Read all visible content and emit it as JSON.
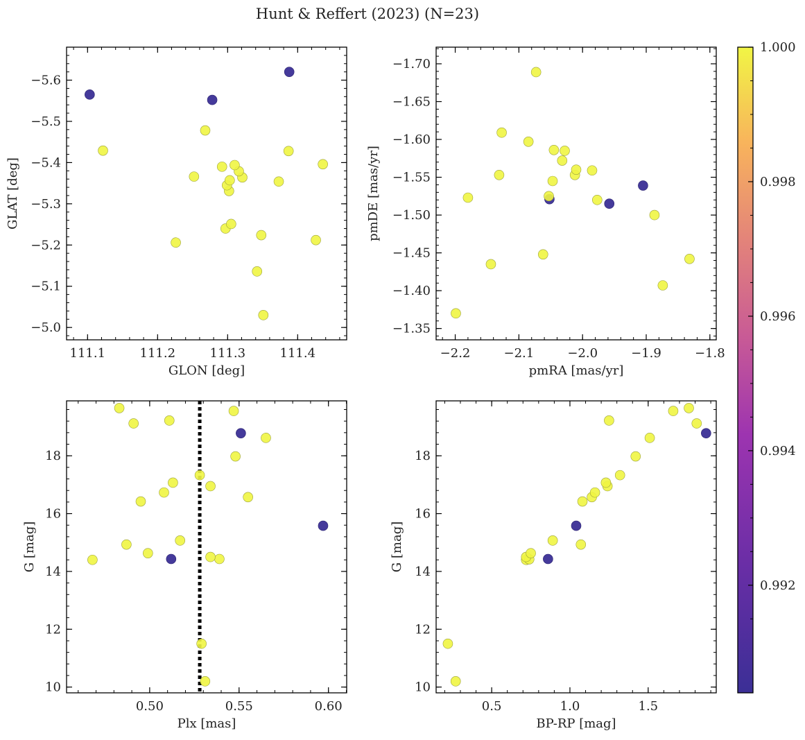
{
  "chart_data": {
    "title": "Hunt & Reffert (2023) (N=23)",
    "type": "scatter",
    "colorbar": {
      "range": [
        0.9904,
        1.0
      ],
      "ticks": [
        0.992,
        0.994,
        0.996,
        0.998,
        1.0
      ],
      "tick_labels": [
        "0.992",
        "0.994",
        "0.996",
        "0.998",
        "1.000"
      ],
      "colormap": "plasma"
    },
    "marker_colors": {
      "member": "#eff542",
      "low_prob": "#3b2f96"
    },
    "panels": [
      {
        "id": "tl",
        "xlabel": "GLON [deg]",
        "ylabel": "GLAT [deg]",
        "xlim": [
          111.07,
          111.47
        ],
        "ylim": [
          -5.68,
          -4.97
        ],
        "xticks": [
          111.1,
          111.2,
          111.3,
          111.4
        ],
        "xtick_labels": [
          "111.1",
          "111.2",
          "111.3",
          "111.4"
        ],
        "yticks": [
          -5.0,
          -5.1,
          -5.2,
          -5.3,
          -5.4,
          -5.5,
          -5.6
        ],
        "ytick_labels": [
          "−5.0",
          "−5.1",
          "−5.2",
          "−5.3",
          "−5.4",
          "−5.5",
          "−5.6"
        ],
        "points": [
          {
            "x": 111.351,
            "y": -5.03,
            "c": 1.0
          },
          {
            "x": 111.342,
            "y": -5.136,
            "c": 1.0
          },
          {
            "x": 111.226,
            "y": -5.206,
            "c": 1.0
          },
          {
            "x": 111.348,
            "y": -5.224,
            "c": 1.0
          },
          {
            "x": 111.426,
            "y": -5.212,
            "c": 1.0
          },
          {
            "x": 111.297,
            "y": -5.24,
            "c": 1.0
          },
          {
            "x": 111.305,
            "y": -5.251,
            "c": 1.0
          },
          {
            "x": 111.302,
            "y": -5.331,
            "c": 1.0
          },
          {
            "x": 111.299,
            "y": -5.345,
            "c": 1.0
          },
          {
            "x": 111.303,
            "y": -5.357,
            "c": 1.0
          },
          {
            "x": 111.373,
            "y": -5.354,
            "c": 1.0
          },
          {
            "x": 111.321,
            "y": -5.364,
            "c": 1.0
          },
          {
            "x": 111.252,
            "y": -5.366,
            "c": 1.0
          },
          {
            "x": 111.316,
            "y": -5.379,
            "c": 1.0
          },
          {
            "x": 111.292,
            "y": -5.39,
            "c": 1.0
          },
          {
            "x": 111.31,
            "y": -5.394,
            "c": 1.0
          },
          {
            "x": 111.436,
            "y": -5.396,
            "c": 1.0
          },
          {
            "x": 111.122,
            "y": -5.429,
            "c": 1.0
          },
          {
            "x": 111.387,
            "y": -5.428,
            "c": 1.0
          },
          {
            "x": 111.268,
            "y": -5.478,
            "c": 1.0
          },
          {
            "x": 111.103,
            "y": -5.565,
            "c": 0.9905
          },
          {
            "x": 111.278,
            "y": -5.552,
            "c": 0.9905
          },
          {
            "x": 111.388,
            "y": -5.62,
            "c": 0.9905
          }
        ]
      },
      {
        "id": "tr",
        "xlabel": "pmRA [mas/yr]",
        "ylabel": "pmDE [mas/yr]",
        "xlim": [
          -2.23,
          -1.79
        ],
        "ylim": [
          -1.722,
          -1.335
        ],
        "xticks": [
          -2.2,
          -2.1,
          -2.0,
          -1.9,
          -1.8
        ],
        "xtick_labels": [
          "−2.2",
          "−2.1",
          "−2.0",
          "−1.9",
          "−1.8"
        ],
        "yticks": [
          -1.35,
          -1.4,
          -1.45,
          -1.5,
          -1.55,
          -1.6,
          -1.65,
          -1.7
        ],
        "ytick_labels": [
          "−1.35",
          "−1.40",
          "−1.45",
          "−1.50",
          "−1.55",
          "−1.60",
          "−1.65",
          "−1.70"
        ],
        "points": [
          {
            "x": -2.199,
            "y": -1.37,
            "c": 1.0
          },
          {
            "x": -1.874,
            "y": -1.407,
            "c": 1.0
          },
          {
            "x": -2.144,
            "y": -1.435,
            "c": 1.0
          },
          {
            "x": -1.832,
            "y": -1.442,
            "c": 1.0
          },
          {
            "x": -2.062,
            "y": -1.448,
            "c": 1.0
          },
          {
            "x": -1.887,
            "y": -1.5,
            "c": 1.0
          },
          {
            "x": -1.977,
            "y": -1.52,
            "c": 1.0
          },
          {
            "x": -2.18,
            "y": -1.523,
            "c": 1.0
          },
          {
            "x": -2.053,
            "y": -1.525,
            "c": 1.0
          },
          {
            "x": -2.047,
            "y": -1.545,
            "c": 1.0
          },
          {
            "x": -2.131,
            "y": -1.553,
            "c": 1.0
          },
          {
            "x": -2.012,
            "y": -1.553,
            "c": 1.0
          },
          {
            "x": -1.985,
            "y": -1.559,
            "c": 1.0
          },
          {
            "x": -2.01,
            "y": -1.56,
            "c": 1.0
          },
          {
            "x": -2.032,
            "y": -1.572,
            "c": 1.0
          },
          {
            "x": -2.045,
            "y": -1.586,
            "c": 1.0
          },
          {
            "x": -2.028,
            "y": -1.585,
            "c": 1.0
          },
          {
            "x": -2.085,
            "y": -1.597,
            "c": 1.0
          },
          {
            "x": -2.127,
            "y": -1.609,
            "c": 1.0
          },
          {
            "x": -2.073,
            "y": -1.689,
            "c": 1.0
          },
          {
            "x": -2.052,
            "y": -1.521,
            "c": 0.9905
          },
          {
            "x": -1.958,
            "y": -1.515,
            "c": 0.9905
          },
          {
            "x": -1.905,
            "y": -1.539,
            "c": 0.9905
          }
        ]
      },
      {
        "id": "bl",
        "xlabel": "Plx [mas]",
        "ylabel": "G [mag]",
        "xlim": [
          0.4535,
          0.6102
        ],
        "ylim": [
          19.9,
          9.8
        ],
        "xticks": [
          0.5,
          0.55,
          0.6
        ],
        "xtick_labels": [
          "0.50",
          "0.55",
          "0.60"
        ],
        "yticks": [
          10,
          12,
          14,
          16,
          18
        ],
        "ytick_labels": [
          "10",
          "12",
          "14",
          "16",
          "18"
        ],
        "vline": 0.528,
        "points": [
          {
            "x": 0.531,
            "y": 10.2,
            "c": 1.0
          },
          {
            "x": 0.529,
            "y": 11.5,
            "c": 1.0
          },
          {
            "x": 0.468,
            "y": 14.4,
            "c": 1.0
          },
          {
            "x": 0.539,
            "y": 14.43,
            "c": 1.0
          },
          {
            "x": 0.534,
            "y": 14.5,
            "c": 1.0
          },
          {
            "x": 0.499,
            "y": 14.63,
            "c": 1.0
          },
          {
            "x": 0.487,
            "y": 14.93,
            "c": 1.0
          },
          {
            "x": 0.517,
            "y": 15.07,
            "c": 1.0
          },
          {
            "x": 0.495,
            "y": 16.42,
            "c": 1.0
          },
          {
            "x": 0.555,
            "y": 16.57,
            "c": 1.0
          },
          {
            "x": 0.508,
            "y": 16.73,
            "c": 1.0
          },
          {
            "x": 0.534,
            "y": 16.95,
            "c": 1.0
          },
          {
            "x": 0.513,
            "y": 17.07,
            "c": 1.0
          },
          {
            "x": 0.528,
            "y": 17.33,
            "c": 1.0
          },
          {
            "x": 0.548,
            "y": 17.98,
            "c": 1.0
          },
          {
            "x": 0.565,
            "y": 18.62,
            "c": 1.0
          },
          {
            "x": 0.491,
            "y": 19.12,
            "c": 1.0
          },
          {
            "x": 0.511,
            "y": 19.22,
            "c": 1.0
          },
          {
            "x": 0.547,
            "y": 19.55,
            "c": 1.0
          },
          {
            "x": 0.483,
            "y": 19.65,
            "c": 1.0
          },
          {
            "x": 0.512,
            "y": 14.43,
            "c": 0.9905
          },
          {
            "x": 0.597,
            "y": 15.58,
            "c": 0.9905
          },
          {
            "x": 0.551,
            "y": 18.78,
            "c": 0.9905
          }
        ]
      },
      {
        "id": "br",
        "xlabel": "BP-RP [mag]",
        "ylabel": "G [mag]",
        "xlim": [
          0.145,
          1.935
        ],
        "ylim": [
          19.9,
          9.8
        ],
        "xticks": [
          0.5,
          1.0,
          1.5
        ],
        "xtick_labels": [
          "0.5",
          "1.0",
          "1.5"
        ],
        "yticks": [
          10,
          12,
          14,
          16,
          18
        ],
        "ytick_labels": [
          "10",
          "12",
          "14",
          "16",
          "18"
        ],
        "points": [
          {
            "x": 0.27,
            "y": 10.2,
            "c": 1.0
          },
          {
            "x": 0.22,
            "y": 11.5,
            "c": 1.0
          },
          {
            "x": 0.72,
            "y": 14.4,
            "c": 1.0
          },
          {
            "x": 0.74,
            "y": 14.42,
            "c": 1.0
          },
          {
            "x": 0.72,
            "y": 14.5,
            "c": 1.0
          },
          {
            "x": 0.75,
            "y": 14.63,
            "c": 1.0
          },
          {
            "x": 1.07,
            "y": 14.93,
            "c": 1.0
          },
          {
            "x": 0.89,
            "y": 15.07,
            "c": 1.0
          },
          {
            "x": 1.08,
            "y": 16.42,
            "c": 1.0
          },
          {
            "x": 1.14,
            "y": 16.57,
            "c": 1.0
          },
          {
            "x": 1.16,
            "y": 16.73,
            "c": 1.0
          },
          {
            "x": 1.24,
            "y": 16.95,
            "c": 1.0
          },
          {
            "x": 1.23,
            "y": 17.07,
            "c": 1.0
          },
          {
            "x": 1.32,
            "y": 17.33,
            "c": 1.0
          },
          {
            "x": 1.42,
            "y": 17.98,
            "c": 1.0
          },
          {
            "x": 1.51,
            "y": 18.62,
            "c": 1.0
          },
          {
            "x": 1.81,
            "y": 19.12,
            "c": 1.0
          },
          {
            "x": 1.25,
            "y": 19.22,
            "c": 1.0
          },
          {
            "x": 1.66,
            "y": 19.55,
            "c": 1.0
          },
          {
            "x": 1.76,
            "y": 19.65,
            "c": 1.0
          },
          {
            "x": 0.86,
            "y": 14.43,
            "c": 0.9905
          },
          {
            "x": 1.04,
            "y": 15.58,
            "c": 0.9905
          },
          {
            "x": 1.87,
            "y": 18.78,
            "c": 0.9905
          }
        ]
      }
    ]
  }
}
